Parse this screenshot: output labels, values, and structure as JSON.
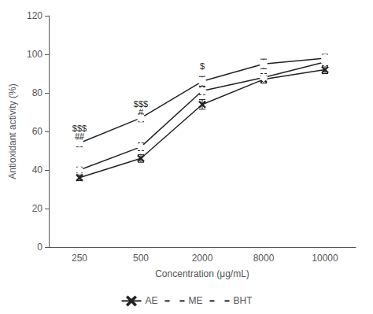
{
  "chart_data": {
    "type": "line",
    "xlabel": "Concentration (μg/mL)",
    "ylabel": "Antioxidant activity (%)",
    "categories": [
      "250",
      "500",
      "2000",
      "8000",
      "10000"
    ],
    "series": [
      {
        "name": "AE",
        "color": "#222222",
        "marker": "x",
        "values": [
          36,
          46,
          74,
          87,
          92
        ],
        "yerr": [
          1.5,
          2.0,
          2.5,
          2.0,
          2.0
        ]
      },
      {
        "name": "ME",
        "color": "#222222",
        "marker": "diamond",
        "values": [
          40,
          52,
          81,
          88,
          96
        ],
        "yerr": [
          1.5,
          2.0,
          2.0,
          2.0,
          2.0
        ]
      },
      {
        "name": "BHT",
        "color": "#222222",
        "marker": "circle",
        "values": [
          54,
          67,
          86,
          95,
          98
        ],
        "yerr": [
          2.0,
          2.0,
          2.5,
          2.5,
          2.0
        ]
      }
    ],
    "annotations": [
      {
        "text": "$$$",
        "x": "250",
        "y": 59.5
      },
      {
        "text": "##",
        "x": "250",
        "y": 55.5
      },
      {
        "text": "$$$",
        "x": "500",
        "y": 72.0
      },
      {
        "text": "#",
        "x": "500",
        "y": 68.0
      },
      {
        "text": "$",
        "x": "2000",
        "y": 91.5
      }
    ],
    "ylim": [
      0,
      120
    ],
    "yticks": [
      0,
      20,
      40,
      60,
      80,
      100,
      120
    ],
    "grid": false,
    "legend": "bottom"
  }
}
